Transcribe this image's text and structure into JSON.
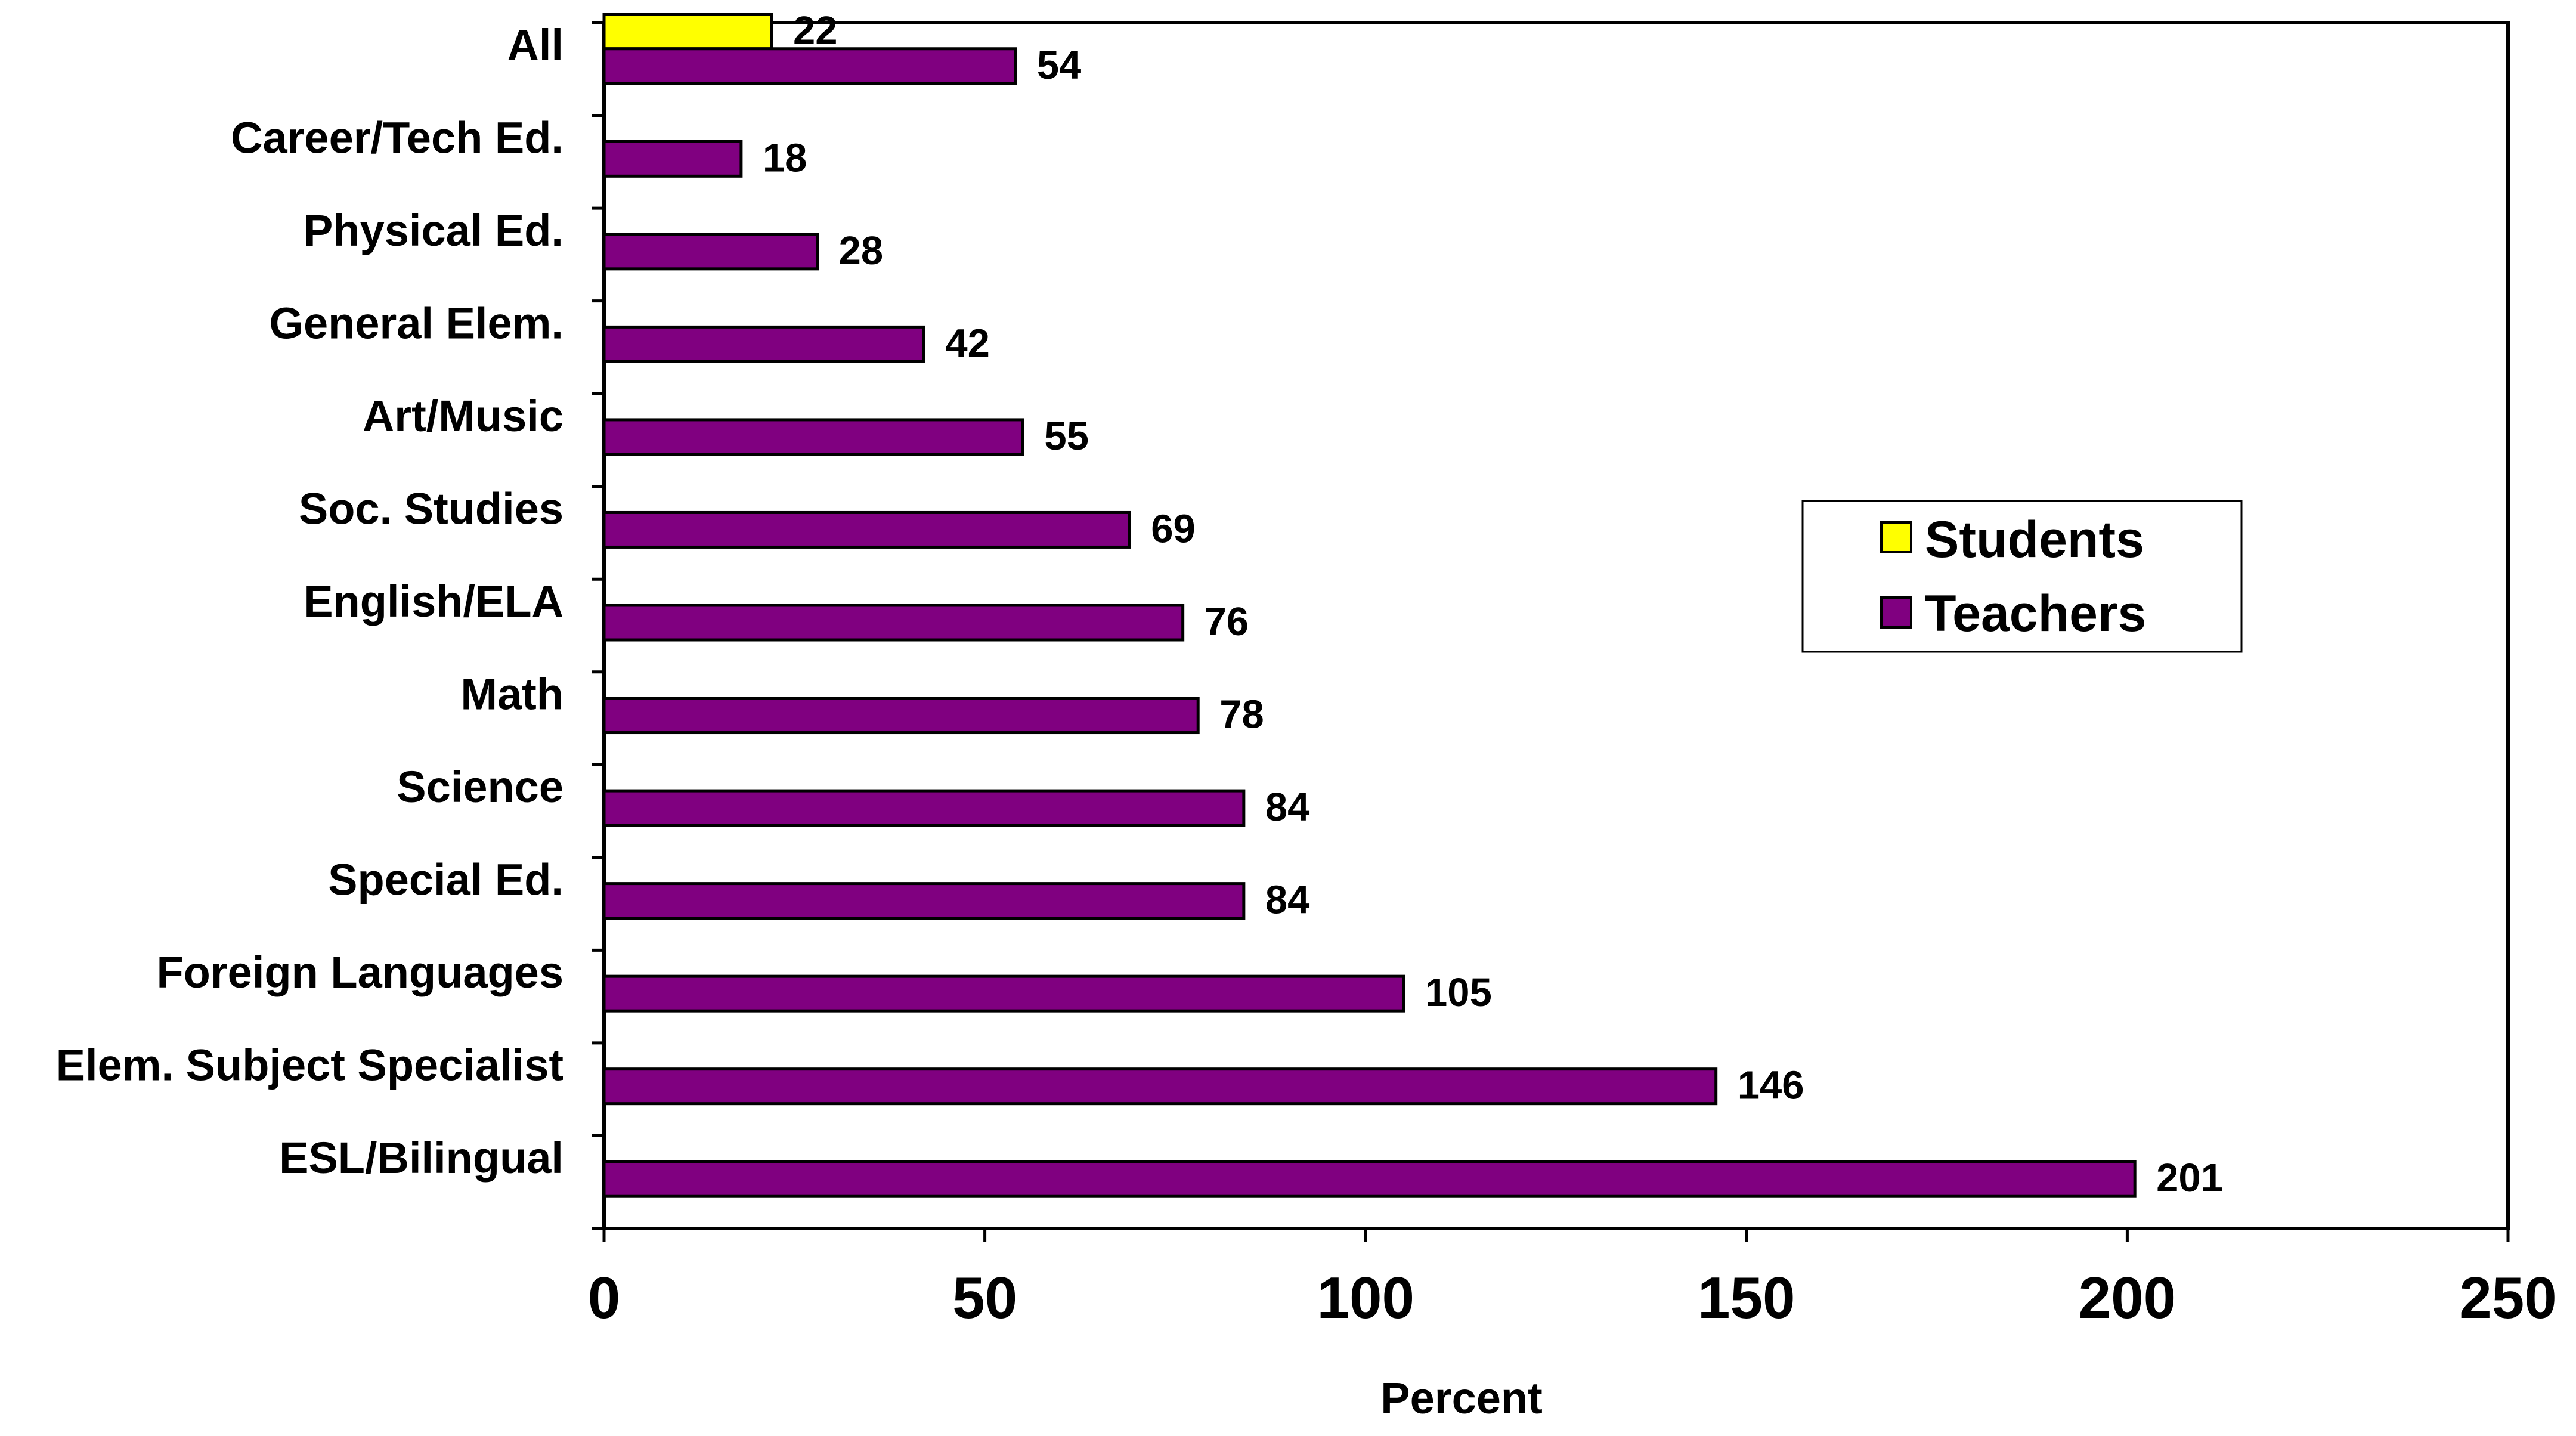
{
  "chart_data": {
    "type": "bar",
    "orientation": "horizontal",
    "categories": [
      "All",
      "Career/Tech Ed.",
      "Physical Ed.",
      "General Elem.",
      "Art/Music",
      "Soc. Studies",
      "English/ELA",
      "Math",
      "Science",
      "Special Ed.",
      "Foreign Languages",
      "Elem. Subject Specialist",
      "ESL/Bilingual"
    ],
    "series": [
      {
        "name": "Students",
        "color": "#FFFF00",
        "values": [
          22,
          null,
          null,
          null,
          null,
          null,
          null,
          null,
          null,
          null,
          null,
          null,
          null
        ]
      },
      {
        "name": "Teachers",
        "color": "#800080",
        "values": [
          54,
          18,
          28,
          42,
          55,
          69,
          76,
          78,
          84,
          84,
          105,
          146,
          201
        ]
      }
    ],
    "xlabel": "Percent",
    "ylabel": "",
    "xlim": [
      0,
      250
    ],
    "xticks": [
      0,
      50,
      100,
      150,
      200,
      250
    ],
    "grid": false,
    "legend_position": "right"
  }
}
